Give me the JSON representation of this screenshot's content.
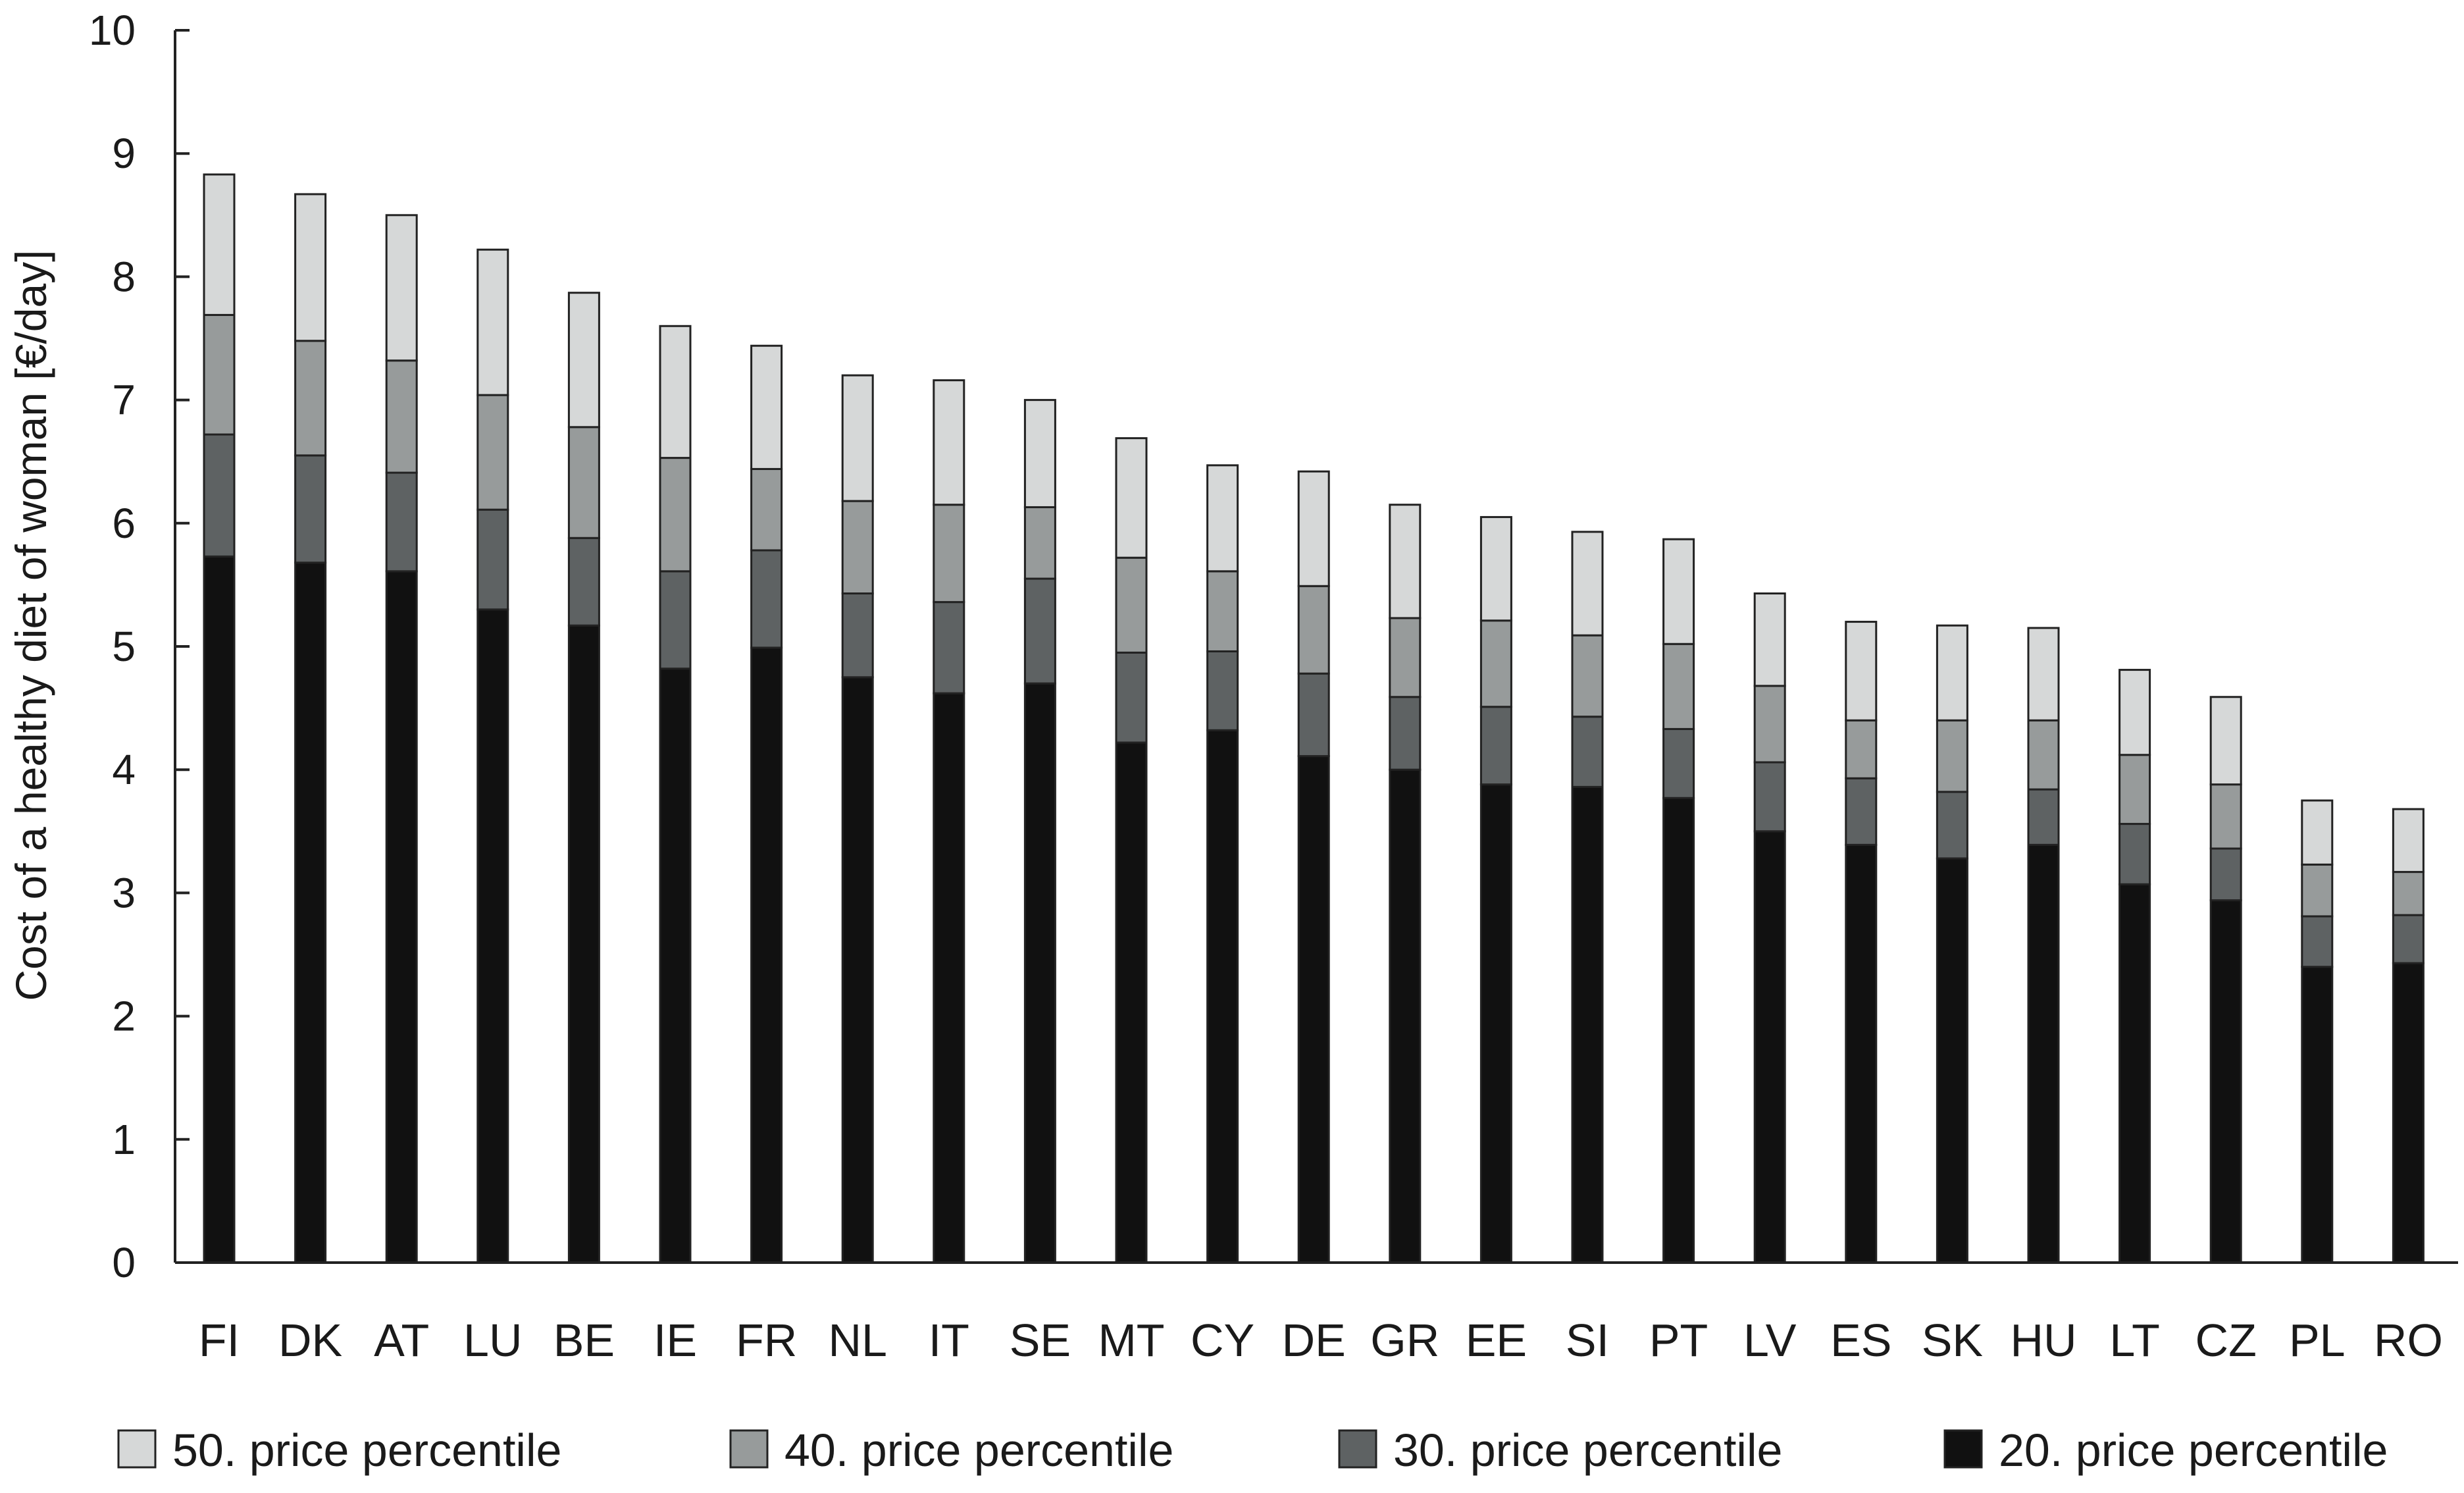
{
  "chart_data": {
    "type": "bar",
    "stacked": true,
    "title": "",
    "xlabel": "",
    "ylabel": "Cost of a healthy diet of woman [€/day]",
    "ylim": [
      0,
      10
    ],
    "yticks": [
      "0",
      "1",
      "2",
      "3",
      "4",
      "5",
      "6",
      "7",
      "8",
      "9",
      "10"
    ],
    "grid": false,
    "legend_position": "bottom",
    "categories": [
      "FI",
      "DK",
      "AT",
      "LU",
      "BE",
      "IE",
      "FR",
      "NL",
      "IT",
      "SE",
      "MT",
      "CY",
      "DE",
      "GR",
      "EE",
      "SI",
      "PT",
      "LV",
      "ES",
      "SK",
      "HU",
      "LT",
      "CZ",
      "PL",
      "RO"
    ],
    "series": [
      {
        "name": "20. price percentile",
        "color": "#111111",
        "values": [
          5.73,
          5.68,
          5.61,
          5.3,
          5.17,
          4.82,
          4.99,
          4.75,
          4.62,
          4.7,
          4.22,
          4.32,
          4.11,
          4.0,
          3.88,
          3.86,
          3.77,
          3.5,
          3.39,
          3.28,
          3.39,
          3.07,
          2.94,
          2.4,
          2.43
        ]
      },
      {
        "name": "30. price percentile",
        "color": "#5e6263",
        "values": [
          0.99,
          0.87,
          0.8,
          0.81,
          0.71,
          0.79,
          0.79,
          0.68,
          0.74,
          0.85,
          0.73,
          0.64,
          0.67,
          0.59,
          0.63,
          0.57,
          0.56,
          0.56,
          0.54,
          0.54,
          0.45,
          0.49,
          0.42,
          0.41,
          0.39
        ]
      },
      {
        "name": "40. price percentile",
        "color": "#979b9b",
        "values": [
          0.97,
          0.93,
          0.91,
          0.93,
          0.9,
          0.92,
          0.66,
          0.75,
          0.79,
          0.58,
          0.77,
          0.65,
          0.71,
          0.64,
          0.7,
          0.66,
          0.69,
          0.62,
          0.47,
          0.58,
          0.56,
          0.56,
          0.52,
          0.42,
          0.35
        ]
      },
      {
        "name": "50. price percentile",
        "color": "#d6d8d8",
        "values": [
          1.14,
          1.19,
          1.18,
          1.18,
          1.09,
          1.07,
          1.0,
          1.02,
          1.01,
          0.87,
          0.97,
          0.86,
          0.93,
          0.92,
          0.84,
          0.84,
          0.85,
          0.75,
          0.8,
          0.77,
          0.75,
          0.69,
          0.71,
          0.52,
          0.51
        ]
      }
    ],
    "legend": [
      {
        "label": "50. price percentile",
        "color": "#d6d8d8"
      },
      {
        "label": "40. price percentile",
        "color": "#979b9b"
      },
      {
        "label": "30. price percentile",
        "color": "#5e6263"
      },
      {
        "label": "20. price percentile",
        "color": "#111111"
      }
    ]
  }
}
